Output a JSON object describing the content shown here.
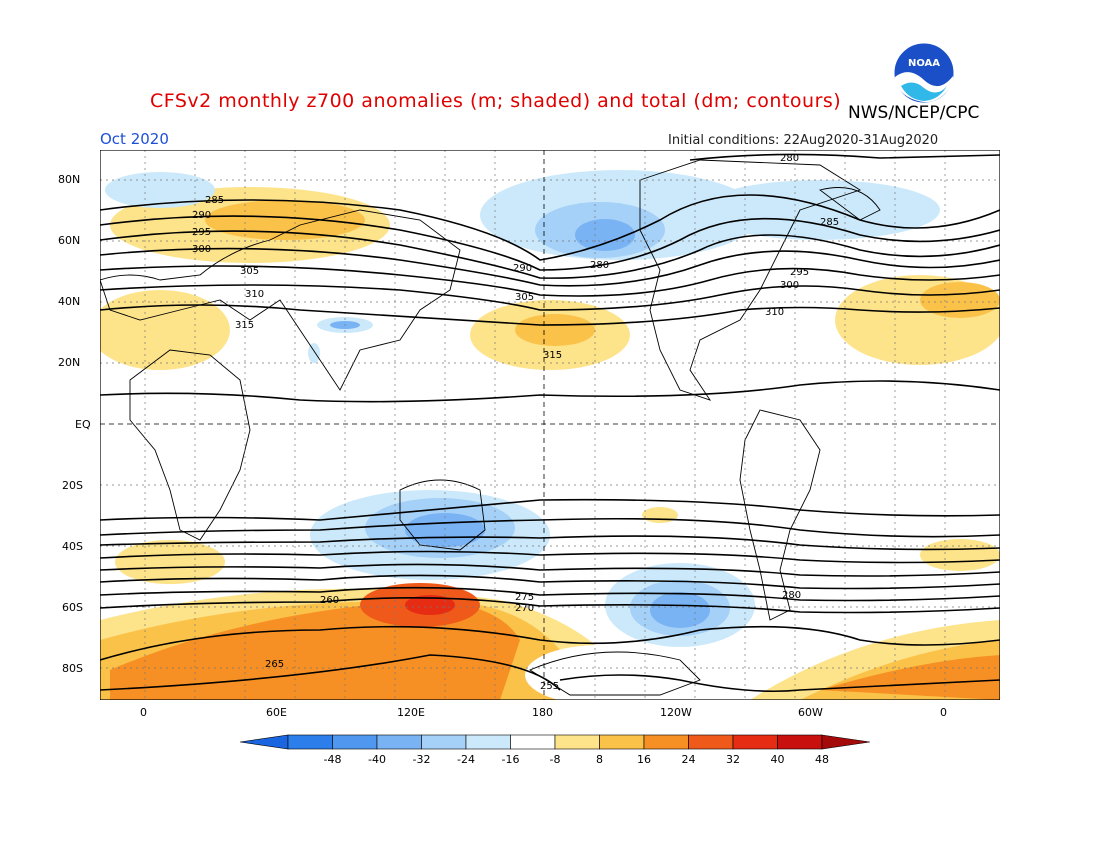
{
  "title": "CFSv2 monthly z700 anomalies (m; shaded) and total (dm; contours)",
  "agency": "NWS/NCEP/CPC",
  "logo_text": "NOAA",
  "month": "Oct 2020",
  "initial_conditions": "Initial conditions: 22Aug2020-31Aug2020",
  "lat_labels": [
    "80N",
    "60N",
    "40N",
    "20N",
    "EQ",
    "20S",
    "40S",
    "60S",
    "80S"
  ],
  "lon_labels": [
    "0",
    "60E",
    "120E",
    "180",
    "120W",
    "60W",
    "0"
  ],
  "colorbar": {
    "ticks": [
      "-48",
      "-40",
      "-32",
      "-24",
      "-16",
      "-8",
      "8",
      "16",
      "24",
      "32",
      "40",
      "48"
    ],
    "colors": [
      "#1a66e0",
      "#2c7fea",
      "#4f97ef",
      "#79b3f4",
      "#a5d0f7",
      "#cbe9fa",
      "#ffffff",
      "#fde38a",
      "#fbc24a",
      "#f79024",
      "#ef5a1a",
      "#e62c12",
      "#c8100e",
      "#a50a0a"
    ]
  },
  "contour_labels": [
    "280",
    "285",
    "290",
    "295",
    "300",
    "305",
    "310",
    "315",
    "280",
    "285",
    "290",
    "295",
    "300",
    "305",
    "310",
    "315",
    "260",
    "265",
    "270",
    "275",
    "280",
    "255"
  ]
}
